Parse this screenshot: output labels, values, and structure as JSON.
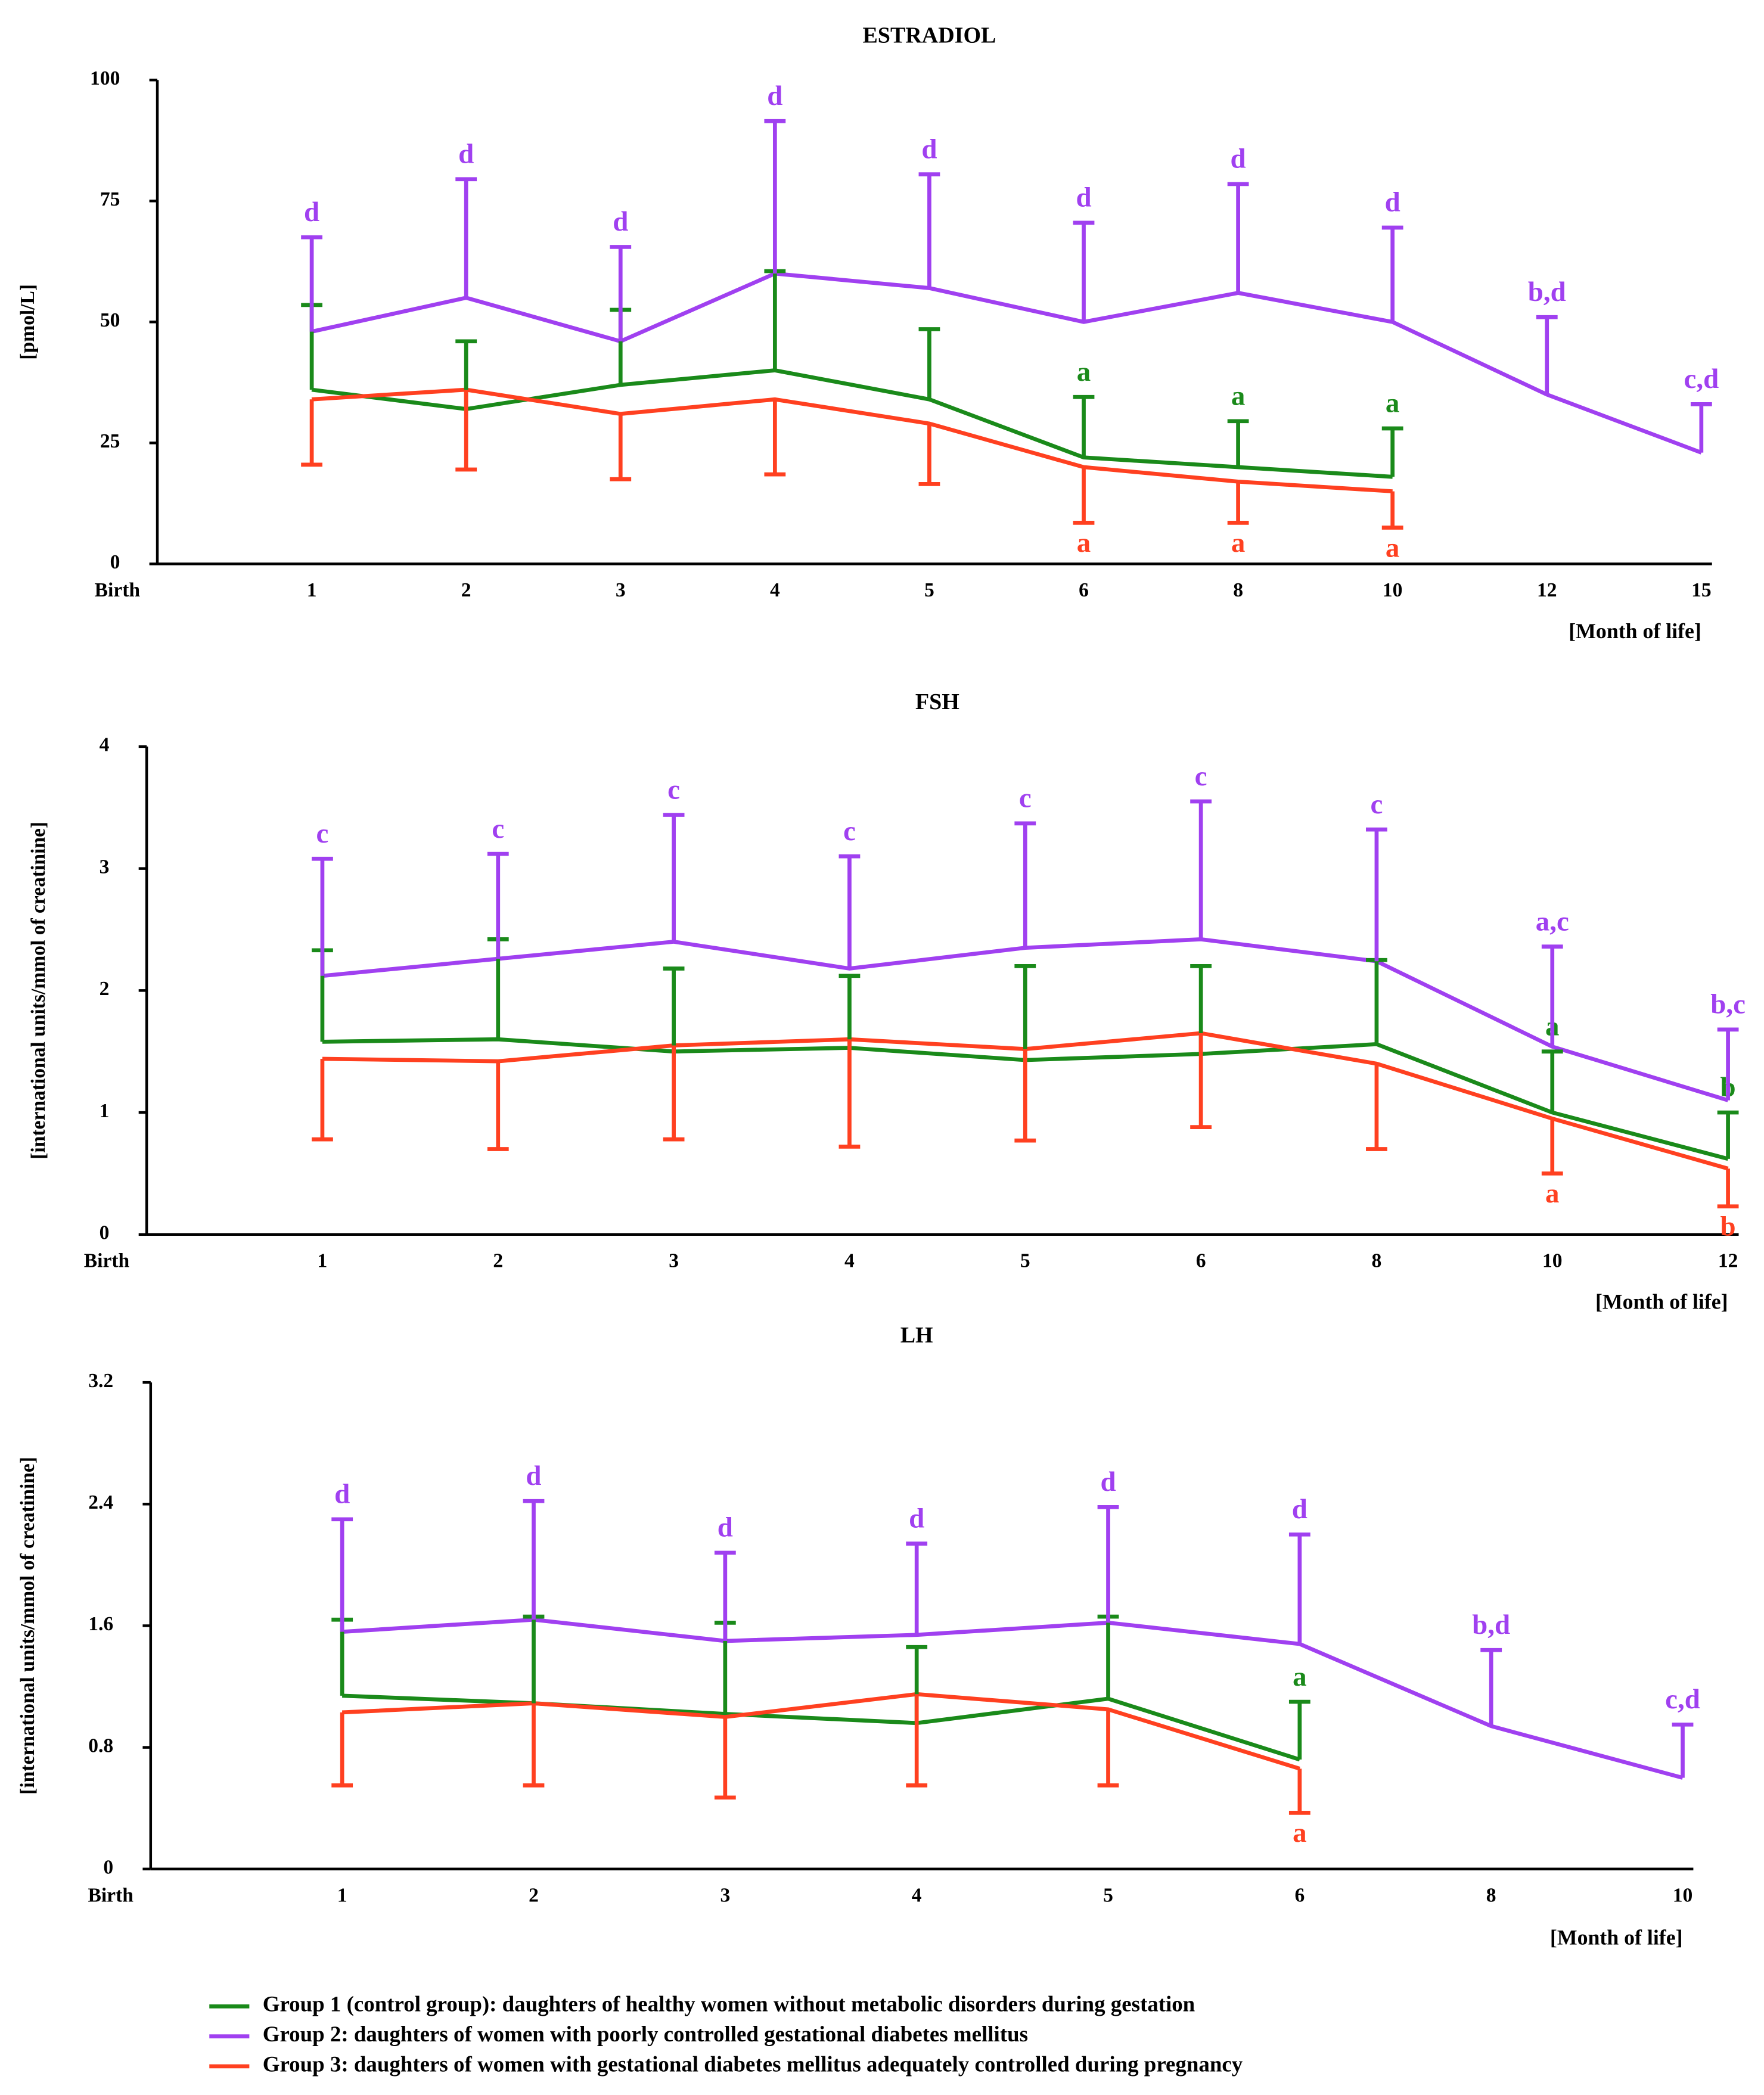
{
  "chart_data": [
    {
      "type": "line",
      "title": "ESTRADIOL",
      "ylabel": "[pmol/L]",
      "xlabel": "[Month of life]",
      "categories": [
        "Birth",
        "1",
        "2",
        "3",
        "4",
        "5",
        "6",
        "8",
        "10",
        "12",
        "15"
      ],
      "ylim": [
        0,
        100
      ],
      "yticks": [
        0,
        25,
        50,
        75,
        100
      ],
      "series": [
        {
          "name": "Group 1 (control group): daughters of healthy women without metabolic disorders during gestation",
          "color": "#1a8a1a",
          "error_direction": "up",
          "values": [
            null,
            36,
            32,
            37,
            40,
            34,
            22,
            20,
            18,
            null,
            null
          ],
          "errors": [
            null,
            17.5,
            14,
            15.5,
            20.5,
            14.5,
            12.5,
            9.5,
            10,
            null,
            null
          ],
          "labels": [
            null,
            null,
            null,
            null,
            null,
            null,
            "a",
            "a",
            "a",
            null,
            null
          ]
        },
        {
          "name": "Group 2: daughters of women with poorly controlled gestational diabetes mellitus",
          "color": "#a040f0",
          "error_direction": "up",
          "values": [
            null,
            48,
            55,
            46,
            60,
            57,
            50,
            56,
            50,
            35,
            23
          ],
          "errors": [
            null,
            19.5,
            24.5,
            19.5,
            31.5,
            23.5,
            20.5,
            22.5,
            19.5,
            16,
            10
          ],
          "labels": [
            null,
            "d",
            "d",
            "d",
            "d",
            "d",
            "d",
            "d",
            "d",
            "b,d",
            "c,d"
          ]
        },
        {
          "name": "Group 3: daughters of women with gestational diabetes mellitus adequately controlled during pregnancy",
          "color": "#ff4020",
          "error_direction": "down",
          "values": [
            null,
            34,
            36,
            31,
            34,
            29,
            20,
            17,
            15,
            null,
            null
          ],
          "errors": [
            null,
            13.5,
            16.5,
            13.5,
            15.5,
            12.5,
            11.5,
            8.5,
            7.5,
            null,
            null
          ],
          "labels": [
            null,
            null,
            null,
            null,
            null,
            null,
            "a",
            "a",
            "a",
            null,
            null
          ]
        }
      ]
    },
    {
      "type": "line",
      "title": "FSH",
      "ylabel": "[international units/mmol of creatinine]",
      "xlabel": "[Month of life]",
      "categories": [
        "Birth",
        "1",
        "2",
        "3",
        "4",
        "5",
        "6",
        "8",
        "10",
        "12"
      ],
      "ylim": [
        0,
        4
      ],
      "yticks": [
        0,
        1,
        2,
        3,
        4
      ],
      "series": [
        {
          "color": "#1a8a1a",
          "error_direction": "up",
          "values": [
            null,
            1.58,
            1.6,
            1.5,
            1.53,
            1.43,
            1.48,
            1.56,
            1.0,
            0.62
          ],
          "errors": [
            null,
            0.75,
            0.82,
            0.68,
            0.59,
            0.77,
            0.72,
            0.69,
            0.5,
            0.38
          ],
          "labels": [
            null,
            null,
            null,
            null,
            null,
            null,
            null,
            null,
            "a",
            "b"
          ]
        },
        {
          "color": "#a040f0",
          "error_direction": "up",
          "values": [
            null,
            2.12,
            2.26,
            2.4,
            2.18,
            2.35,
            2.42,
            2.24,
            1.54,
            1.1
          ],
          "errors": [
            null,
            0.96,
            0.86,
            1.04,
            0.92,
            1.02,
            1.13,
            1.08,
            0.82,
            0.58
          ],
          "labels": [
            null,
            "c",
            "c",
            "c",
            "c",
            "c",
            "c",
            "c",
            "a,c",
            "b,c"
          ]
        },
        {
          "color": "#ff4020",
          "error_direction": "down",
          "values": [
            null,
            1.44,
            1.42,
            1.55,
            1.6,
            1.52,
            1.65,
            1.4,
            0.95,
            0.54
          ],
          "errors": [
            null,
            0.66,
            0.72,
            0.77,
            0.88,
            0.75,
            0.77,
            0.7,
            0.45,
            0.31
          ],
          "labels": [
            null,
            null,
            null,
            null,
            null,
            null,
            null,
            null,
            "a",
            "b"
          ]
        }
      ]
    },
    {
      "type": "line",
      "title": "LH",
      "ylabel": "[international units/mmol of creatinine]",
      "xlabel": "[Month of life]",
      "categories": [
        "Birth",
        "1",
        "2",
        "3",
        "4",
        "5",
        "6",
        "8",
        "10"
      ],
      "ylim": [
        0,
        3.2
      ],
      "yticks": [
        0,
        0.8,
        1.6,
        2.4,
        3.2
      ],
      "series": [
        {
          "color": "#1a8a1a",
          "error_direction": "up",
          "values": [
            null,
            1.14,
            1.09,
            1.02,
            0.96,
            1.12,
            0.72,
            null,
            null
          ],
          "errors": [
            null,
            0.5,
            0.57,
            0.6,
            0.5,
            0.54,
            0.38,
            null,
            null
          ],
          "labels": [
            null,
            null,
            null,
            null,
            null,
            null,
            "a",
            null,
            null
          ]
        },
        {
          "color": "#a040f0",
          "error_direction": "up",
          "values": [
            null,
            1.56,
            1.64,
            1.5,
            1.54,
            1.62,
            1.48,
            0.94,
            0.6
          ],
          "errors": [
            null,
            0.74,
            0.78,
            0.58,
            0.6,
            0.76,
            0.72,
            0.5,
            0.35
          ],
          "labels": [
            null,
            "d",
            "d",
            "d",
            "d",
            "d",
            "d",
            "b,d",
            "c,d"
          ]
        },
        {
          "color": "#ff4020",
          "error_direction": "down",
          "values": [
            null,
            1.03,
            1.09,
            1.0,
            1.15,
            1.05,
            0.66,
            null,
            null
          ],
          "errors": [
            null,
            0.48,
            0.54,
            0.53,
            0.6,
            0.5,
            0.29,
            null,
            null
          ],
          "labels": [
            null,
            null,
            null,
            null,
            null,
            null,
            "a",
            null,
            null
          ]
        }
      ]
    }
  ]
}
